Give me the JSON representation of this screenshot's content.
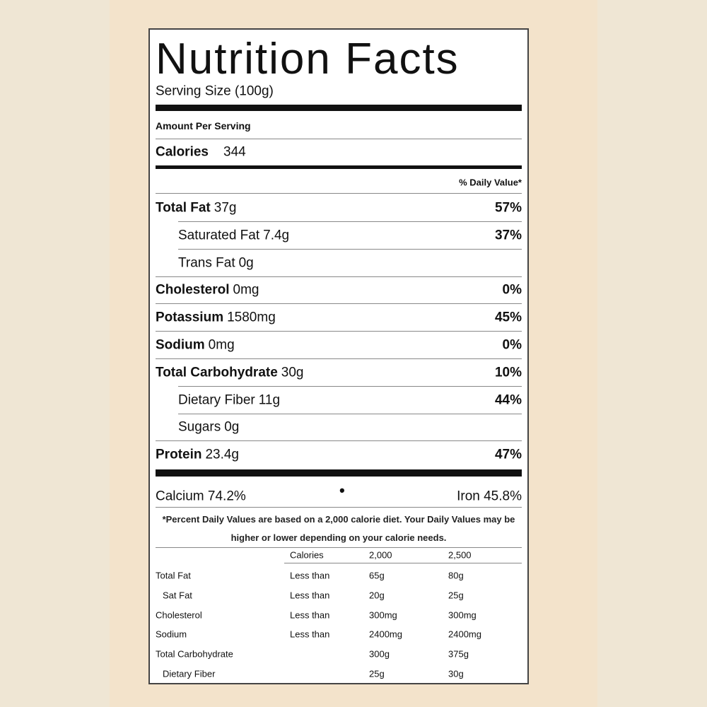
{
  "title": "Nutrition Facts",
  "serving_size": "Serving Size (100g)",
  "amount_per_serving": "Amount Per Serving",
  "calories": {
    "label": "Calories",
    "value": "344"
  },
  "daily_value_header": "% Daily Value*",
  "nutrients": [
    {
      "name": "Total Fat",
      "amount": "37g",
      "dv": "57%"
    },
    {
      "name": "Saturated Fat",
      "amount": "7.4g",
      "dv": "37%",
      "sub": true
    },
    {
      "name": "Trans Fat",
      "amount": "0g",
      "sub": true
    },
    {
      "name": "Cholesterol",
      "amount": "0mg",
      "dv": "0%"
    },
    {
      "name": "Potassium",
      "amount": "1580mg",
      "dv": "45%"
    },
    {
      "name": "Sodium",
      "amount": "0mg",
      "dv": "0%"
    },
    {
      "name": "Total Carbohydrate",
      "amount": "30g",
      "dv": "10%"
    },
    {
      "name": "Dietary Fiber",
      "amount": "11g",
      "dv": "44%",
      "sub": true
    },
    {
      "name": "Sugars",
      "amount": "0g",
      "sub": true
    },
    {
      "name": "Protein",
      "amount": "23.4g",
      "dv": "47%"
    }
  ],
  "vitamins": [
    "Calcium 74.2%",
    "Iron 45.8%"
  ],
  "footnote": "*Percent Daily Values are based on a 2,000 calorie diet. Your Daily Values may be higher or lower depending on your calorie needs.",
  "reference_table": {
    "header": [
      "Calories",
      "2,000",
      "2,500"
    ],
    "rows": [
      {
        "name": "Total Fat",
        "qualifier": "Less than",
        "v2000": "65g",
        "v2500": "80g"
      },
      {
        "name": "Sat Fat",
        "qualifier": "Less than",
        "v2000": "20g",
        "v2500": "25g",
        "sub": true
      },
      {
        "name": "Cholesterol",
        "qualifier": "Less than",
        "v2000": "300mg",
        "v2500": "300mg"
      },
      {
        "name": "Sodium",
        "qualifier": "Less than",
        "v2000": "2400mg",
        "v2500": "2400mg"
      },
      {
        "name": "Total Carbohydrate",
        "v2000": "300g",
        "v2500": "375g"
      },
      {
        "name": "Dietary Fiber",
        "v2000": "25g",
        "v2500": "30g",
        "sub": true
      }
    ]
  }
}
